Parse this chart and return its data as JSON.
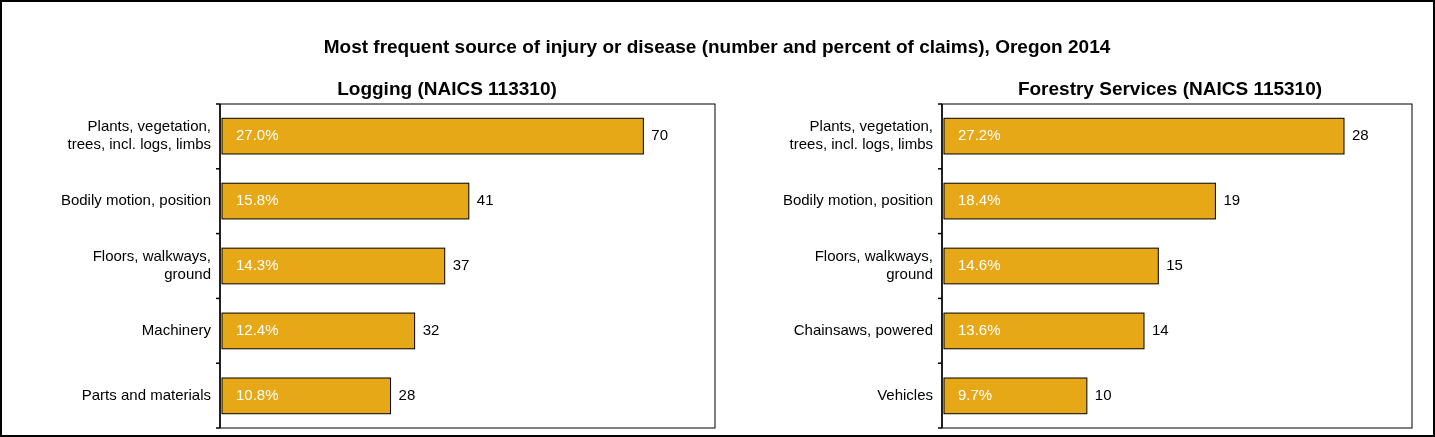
{
  "chart_data": [
    {
      "type": "bar",
      "orientation": "horizontal",
      "title": "Most frequent source of injury or disease (number and percent of claims), Oregon 2014",
      "subtitle": "Logging (NAICS 113310)",
      "categories": [
        "Plants, vegetation,\ntrees, incl. logs, limbs",
        "Bodily motion, position",
        "Floors, walkways,\nground",
        "Machinery",
        "Parts and materials"
      ],
      "values": [
        70,
        41,
        37,
        32,
        28
      ],
      "color": "#e6a817",
      "data_labels": true,
      "annotations": [
        "27.0%",
        "15.8%",
        "14.3%",
        "12.4%",
        "10.8%"
      ]
    },
    {
      "type": "bar",
      "orientation": "horizontal",
      "title": "Forestry Services (NAICS 115310)",
      "categories": [
        "Plants, vegetation,\ntrees, incl. logs, limbs",
        "Bodily motion, position",
        "Floors, walkways,\nground",
        "Chainsaws, powered",
        "Vehicles"
      ],
      "values": [
        28,
        19,
        15,
        14,
        10
      ],
      "color": "#e6a817",
      "data_labels": true,
      "annotations": [
        "27.2%",
        "18.4%",
        "14.6%",
        "13.6%",
        "9.7%"
      ]
    }
  ]
}
